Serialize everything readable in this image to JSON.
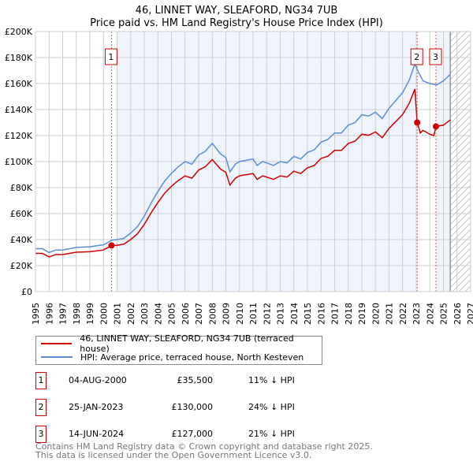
{
  "chart_data": {
    "type": "line",
    "title": "46, LINNET WAY, SLEAFORD, NG34 7UB",
    "subtitle": "Price paid vs. HM Land Registry's House Price Index (HPI)",
    "xlim": [
      1995,
      2027
    ],
    "ylim": [
      0,
      200000
    ],
    "y_ticks": [
      "£0",
      "£20K",
      "£40K",
      "£60K",
      "£80K",
      "£100K",
      "£120K",
      "£140K",
      "£160K",
      "£180K",
      "£200K"
    ],
    "x_ticks": [
      "1995",
      "1996",
      "1997",
      "1998",
      "1999",
      "2000",
      "2001",
      "2002",
      "2003",
      "2004",
      "2005",
      "2006",
      "2007",
      "2008",
      "2009",
      "2010",
      "2011",
      "2012",
      "2013",
      "2014",
      "2015",
      "2016",
      "2017",
      "2018",
      "2019",
      "2020",
      "2021",
      "2022",
      "2023",
      "2024",
      "2025",
      "2026",
      "2027"
    ],
    "series": [
      {
        "name": "46, LINNET WAY, SLEAFORD, NG34 7UB (terraced house)",
        "color": "#cc0000",
        "x": [
          1995,
          1995.5,
          1996,
          1996.5,
          1997,
          1998,
          1999,
          2000,
          2000.6,
          2001,
          2001.5,
          2002,
          2002.5,
          2003,
          2003.5,
          2004,
          2004.5,
          2005,
          2005.5,
          2006,
          2006.5,
          2007,
          2007.5,
          2008,
          2008.3,
          2008.6,
          2009,
          2009.3,
          2009.7,
          2010,
          2010.5,
          2011,
          2011.3,
          2011.7,
          2012,
          2012.5,
          2013,
          2013.5,
          2014,
          2014.5,
          2015,
          2015.5,
          2016,
          2016.5,
          2017,
          2017.5,
          2018,
          2018.5,
          2019,
          2019.5,
          2020,
          2020.5,
          2021,
          2021.5,
          2022,
          2022.5,
          2022.9,
          2023.07,
          2023.3,
          2023.5,
          2024,
          2024.3,
          2024.45,
          2025,
          2025.5
        ],
        "values": [
          29400,
          29400,
          26700,
          28500,
          28500,
          30300,
          30700,
          32000,
          35500,
          35600,
          36500,
          40000,
          44500,
          51600,
          60500,
          68500,
          75700,
          81000,
          85400,
          89000,
          87200,
          93500,
          96100,
          101500,
          97900,
          94300,
          91700,
          81900,
          87200,
          89000,
          89900,
          90800,
          86300,
          89000,
          88100,
          86300,
          89000,
          88100,
          92600,
          90800,
          95200,
          97000,
          102400,
          104100,
          108600,
          108600,
          113900,
          115700,
          121000,
          120200,
          122800,
          118400,
          125500,
          130800,
          136200,
          145100,
          155800,
          130000,
          122000,
          124000,
          121000,
          120000,
          127000,
          128000,
          132000
        ]
      },
      {
        "name": "HPI: Average price, terraced house, North Kesteven",
        "color": "#5b8fd0",
        "x": [
          1995,
          1995.5,
          1996,
          1996.5,
          1997,
          1998,
          1999,
          2000,
          2000.6,
          2001,
          2001.5,
          2002,
          2002.5,
          2003,
          2003.5,
          2004,
          2004.5,
          2005,
          2005.5,
          2006,
          2006.5,
          2007,
          2007.5,
          2008,
          2008.3,
          2008.6,
          2009,
          2009.3,
          2009.7,
          2010,
          2010.5,
          2011,
          2011.3,
          2011.7,
          2012,
          2012.5,
          2013,
          2013.5,
          2014,
          2014.5,
          2015,
          2015.5,
          2016,
          2016.5,
          2017,
          2017.5,
          2018,
          2018.5,
          2019,
          2019.5,
          2020,
          2020.5,
          2021,
          2021.5,
          2022,
          2022.5,
          2022.9,
          2023.2,
          2023.5,
          2024,
          2024.5,
          2025,
          2025.5
        ],
        "values": [
          33000,
          33000,
          30000,
          32000,
          32000,
          34000,
          34500,
          36000,
          39500,
          40000,
          41000,
          45000,
          50000,
          58000,
          68000,
          77000,
          85000,
          91000,
          96000,
          100000,
          98000,
          105000,
          108000,
          114000,
          110000,
          106000,
          103000,
          92000,
          98000,
          100000,
          101000,
          102000,
          97000,
          100000,
          99000,
          97000,
          100000,
          99000,
          104000,
          102000,
          107000,
          109000,
          115000,
          117000,
          122000,
          122000,
          128000,
          130000,
          136000,
          135000,
          138000,
          133000,
          141000,
          147000,
          153000,
          163000,
          175000,
          168000,
          162000,
          160000,
          159000,
          162000,
          167000
        ]
      }
    ],
    "sales": [
      {
        "id": "1",
        "x": 2000.59,
        "value": 35500,
        "date": "04-AUG-2000",
        "price": "£35,500",
        "delta": "11% ↓ HPI"
      },
      {
        "id": "2",
        "x": 2023.07,
        "value": 130000,
        "date": "25-JAN-2023",
        "price": "£130,000",
        "delta": "24% ↓ HPI"
      },
      {
        "id": "3",
        "x": 2024.45,
        "value": 127000,
        "date": "14-JUN-2024",
        "price": "£127,000",
        "delta": "21% ↓ HPI"
      }
    ],
    "forecast_start": 2025.5,
    "legend": "bottom"
  },
  "footer": {
    "line1": "Contains HM Land Registry data © Crown copyright and database right 2025.",
    "line2": "This data is licensed under the Open Government Licence v3.0."
  }
}
